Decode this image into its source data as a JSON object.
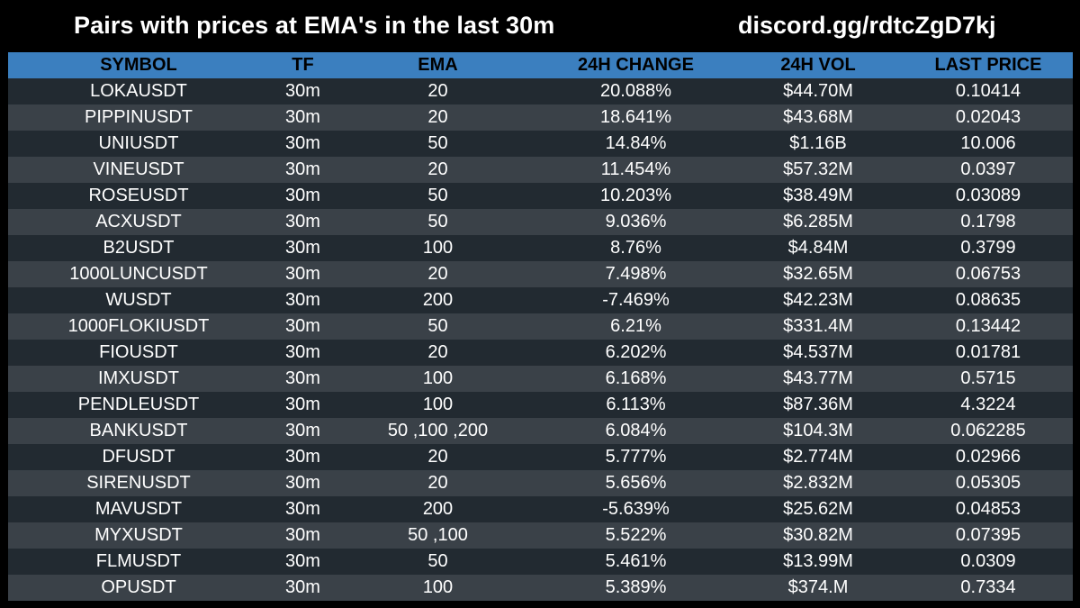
{
  "header": {
    "title": "Pairs with prices at EMA's in the last 30m",
    "discord": "discord.gg/rdtcZgD7kj"
  },
  "table": {
    "columns": [
      "SYMBOL",
      "TF",
      "EMA",
      "24H CHANGE",
      "24H VOL",
      "LAST PRICE"
    ],
    "rows": [
      [
        "LOKAUSDT",
        "30m",
        "20",
        "20.088%",
        "$44.70M",
        "0.10414"
      ],
      [
        "PIPPINUSDT",
        "30m",
        "20",
        "18.641%",
        "$43.68M",
        "0.02043"
      ],
      [
        "UNIUSDT",
        "30m",
        "50",
        "14.84%",
        "$1.16B",
        "10.006"
      ],
      [
        "VINEUSDT",
        "30m",
        "20",
        "11.454%",
        "$57.32M",
        "0.0397"
      ],
      [
        "ROSEUSDT",
        "30m",
        "50",
        "10.203%",
        "$38.49M",
        "0.03089"
      ],
      [
        "ACXUSDT",
        "30m",
        "50",
        "9.036%",
        "$6.285M",
        "0.1798"
      ],
      [
        "B2USDT",
        "30m",
        "100",
        "8.76%",
        "$4.84M",
        "0.3799"
      ],
      [
        "1000LUNCUSDT",
        "30m",
        "20",
        "7.498%",
        "$32.65M",
        "0.06753"
      ],
      [
        "WUSDT",
        "30m",
        "200",
        "-7.469%",
        "$42.23M",
        "0.08635"
      ],
      [
        "1000FLOKIUSDT",
        "30m",
        "50",
        "6.21%",
        "$331.4M",
        "0.13442"
      ],
      [
        "FIOUSDT",
        "30m",
        "20",
        "6.202%",
        "$4.537M",
        "0.01781"
      ],
      [
        "IMXUSDT",
        "30m",
        "100",
        "6.168%",
        "$43.77M",
        "0.5715"
      ],
      [
        "PENDLEUSDT",
        "30m",
        "100",
        "6.113%",
        "$87.36M",
        "4.3224"
      ],
      [
        "BANKUSDT",
        "30m",
        "50 ,100 ,200",
        "6.084%",
        "$104.3M",
        "0.062285"
      ],
      [
        "DFUSDT",
        "30m",
        "20",
        "5.777%",
        "$2.774M",
        "0.02966"
      ],
      [
        "SIRENUSDT",
        "30m",
        "20",
        "5.656%",
        "$2.832M",
        "0.05305"
      ],
      [
        "MAVUSDT",
        "30m",
        "200",
        "-5.639%",
        "$25.62M",
        "0.04853"
      ],
      [
        "MYXUSDT",
        "30m",
        "50 ,100",
        "5.522%",
        "$30.82M",
        "0.07395"
      ],
      [
        "FLMUSDT",
        "30m",
        "50",
        "5.461%",
        "$13.99M",
        "0.0309"
      ],
      [
        "OPUSDT",
        "30m",
        "100",
        "5.389%",
        "$374.M",
        "0.7334"
      ]
    ]
  },
  "colors": {
    "background": "#000000",
    "header_bg": "#3b7fbf",
    "row_dark": "#222a31",
    "row_light": "#3a4148",
    "text": "#ffffff"
  }
}
